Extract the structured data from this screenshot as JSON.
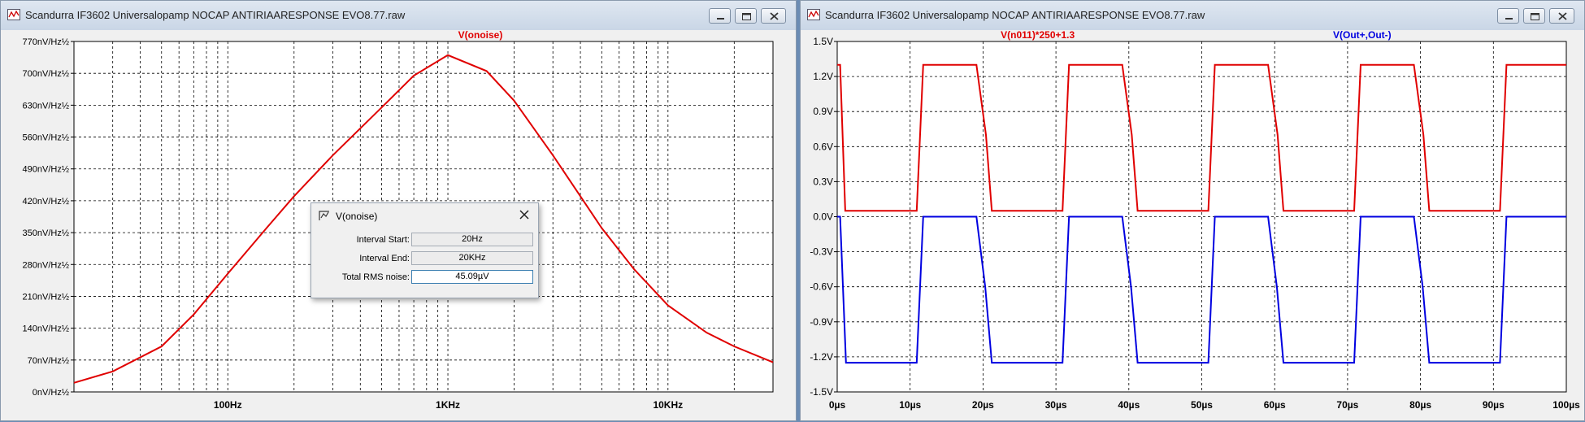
{
  "left_window": {
    "title": "Scandurra IF3602 Universalopamp NOCAP ANTIRIAARESPONSE EVO8.77.raw",
    "icon": "waveform-app-icon",
    "trace_label": "V(onoise)",
    "trace_color": "#e00000",
    "y_ticks": [
      "770nV/Hz½",
      "700nV/Hz½",
      "630nV/Hz½",
      "560nV/Hz½",
      "490nV/Hz½",
      "420nV/Hz½",
      "350nV/Hz½",
      "280nV/Hz½",
      "210nV/Hz½",
      "140nV/Hz½",
      "70nV/Hz½",
      "0nV/Hz½"
    ],
    "x_ticks": [
      "100Hz",
      "1KHz",
      "10KHz"
    ]
  },
  "right_window": {
    "title": "Scandurra IF3602 Universalopamp NOCAP ANTIRIAARESPONSE EVO8.77.raw",
    "icon": "waveform-app-icon",
    "trace1_label": "V(n011)*250+1.3",
    "trace1_color": "#e00000",
    "trace2_label": "V(Out+,Out-)",
    "trace2_color": "#0000e0",
    "y_ticks": [
      "1.5V",
      "1.2V",
      "0.9V",
      "0.6V",
      "0.3V",
      "0.0V",
      "-0.3V",
      "-0.6V",
      "-0.9V",
      "-1.2V",
      "-1.5V"
    ],
    "x_ticks": [
      "0µs",
      "10µs",
      "20µs",
      "30µs",
      "40µs",
      "50µs",
      "60µs",
      "70µs",
      "80µs",
      "90µs",
      "100µs"
    ]
  },
  "dialog": {
    "title": "V(onoise)",
    "interval_start_label": "Interval Start:",
    "interval_start_value": "20Hz",
    "interval_end_label": "Interval End:",
    "interval_end_value": "20KHz",
    "rms_label": "Total RMS noise:",
    "rms_value": "45.09µV"
  },
  "chart_data": [
    {
      "type": "line",
      "title": "V(onoise)",
      "xscale": "log",
      "xlim": [
        20,
        30000
      ],
      "ylim": [
        0,
        770
      ],
      "yunit": "nV/Hz½",
      "grid": true,
      "series": [
        {
          "name": "V(onoise)",
          "color": "#e00000",
          "x": [
            20,
            30,
            50,
            70,
            100,
            150,
            200,
            300,
            500,
            700,
            1000,
            1500,
            2000,
            3000,
            5000,
            7000,
            10000,
            15000,
            20000,
            30000
          ],
          "y": [
            20,
            45,
            100,
            170,
            260,
            360,
            430,
            520,
            625,
            695,
            740,
            705,
            640,
            520,
            360,
            270,
            190,
            130,
            100,
            65
          ]
        }
      ]
    },
    {
      "type": "line",
      "xlim": [
        0,
        100
      ],
      "xunit": "µs",
      "ylim": [
        -1.5,
        1.5
      ],
      "yunit": "V",
      "grid": true,
      "series": [
        {
          "name": "V(n011)*250+1.3",
          "color": "#e00000",
          "x": [
            0,
            0.4,
            1.1,
            10.9,
            11.8,
            19.1,
            20.4,
            21.2,
            30.9,
            31.8,
            39.1,
            40.4,
            41.2,
            50.9,
            51.8,
            59.1,
            60.4,
            61.2,
            70.9,
            71.8,
            79.1,
            80.4,
            81.2,
            90.9,
            91.8,
            100
          ],
          "y": [
            1.3,
            1.3,
            0.05,
            0.05,
            1.3,
            1.3,
            0.7,
            0.05,
            0.05,
            1.3,
            1.3,
            0.7,
            0.05,
            0.05,
            1.3,
            1.3,
            0.7,
            0.05,
            0.05,
            1.3,
            1.3,
            0.7,
            0.05,
            0.05,
            1.3,
            1.3
          ]
        },
        {
          "name": "V(Out+,Out-)",
          "color": "#0000e0",
          "x": [
            0,
            0.4,
            1.2,
            10.9,
            11.8,
            19.1,
            20.3,
            21.2,
            30.9,
            31.8,
            39.1,
            40.3,
            41.2,
            50.9,
            51.8,
            59.1,
            60.3,
            61.2,
            70.9,
            71.8,
            79.1,
            80.3,
            81.2,
            90.9,
            91.8,
            100
          ],
          "y": [
            0,
            0,
            -1.25,
            -1.25,
            0,
            0,
            -0.6,
            -1.25,
            -1.25,
            0,
            0,
            -0.6,
            -1.25,
            -1.25,
            0,
            0,
            -0.6,
            -1.25,
            -1.25,
            0,
            0,
            -0.6,
            -1.25,
            -1.25,
            0,
            0
          ]
        }
      ]
    }
  ]
}
